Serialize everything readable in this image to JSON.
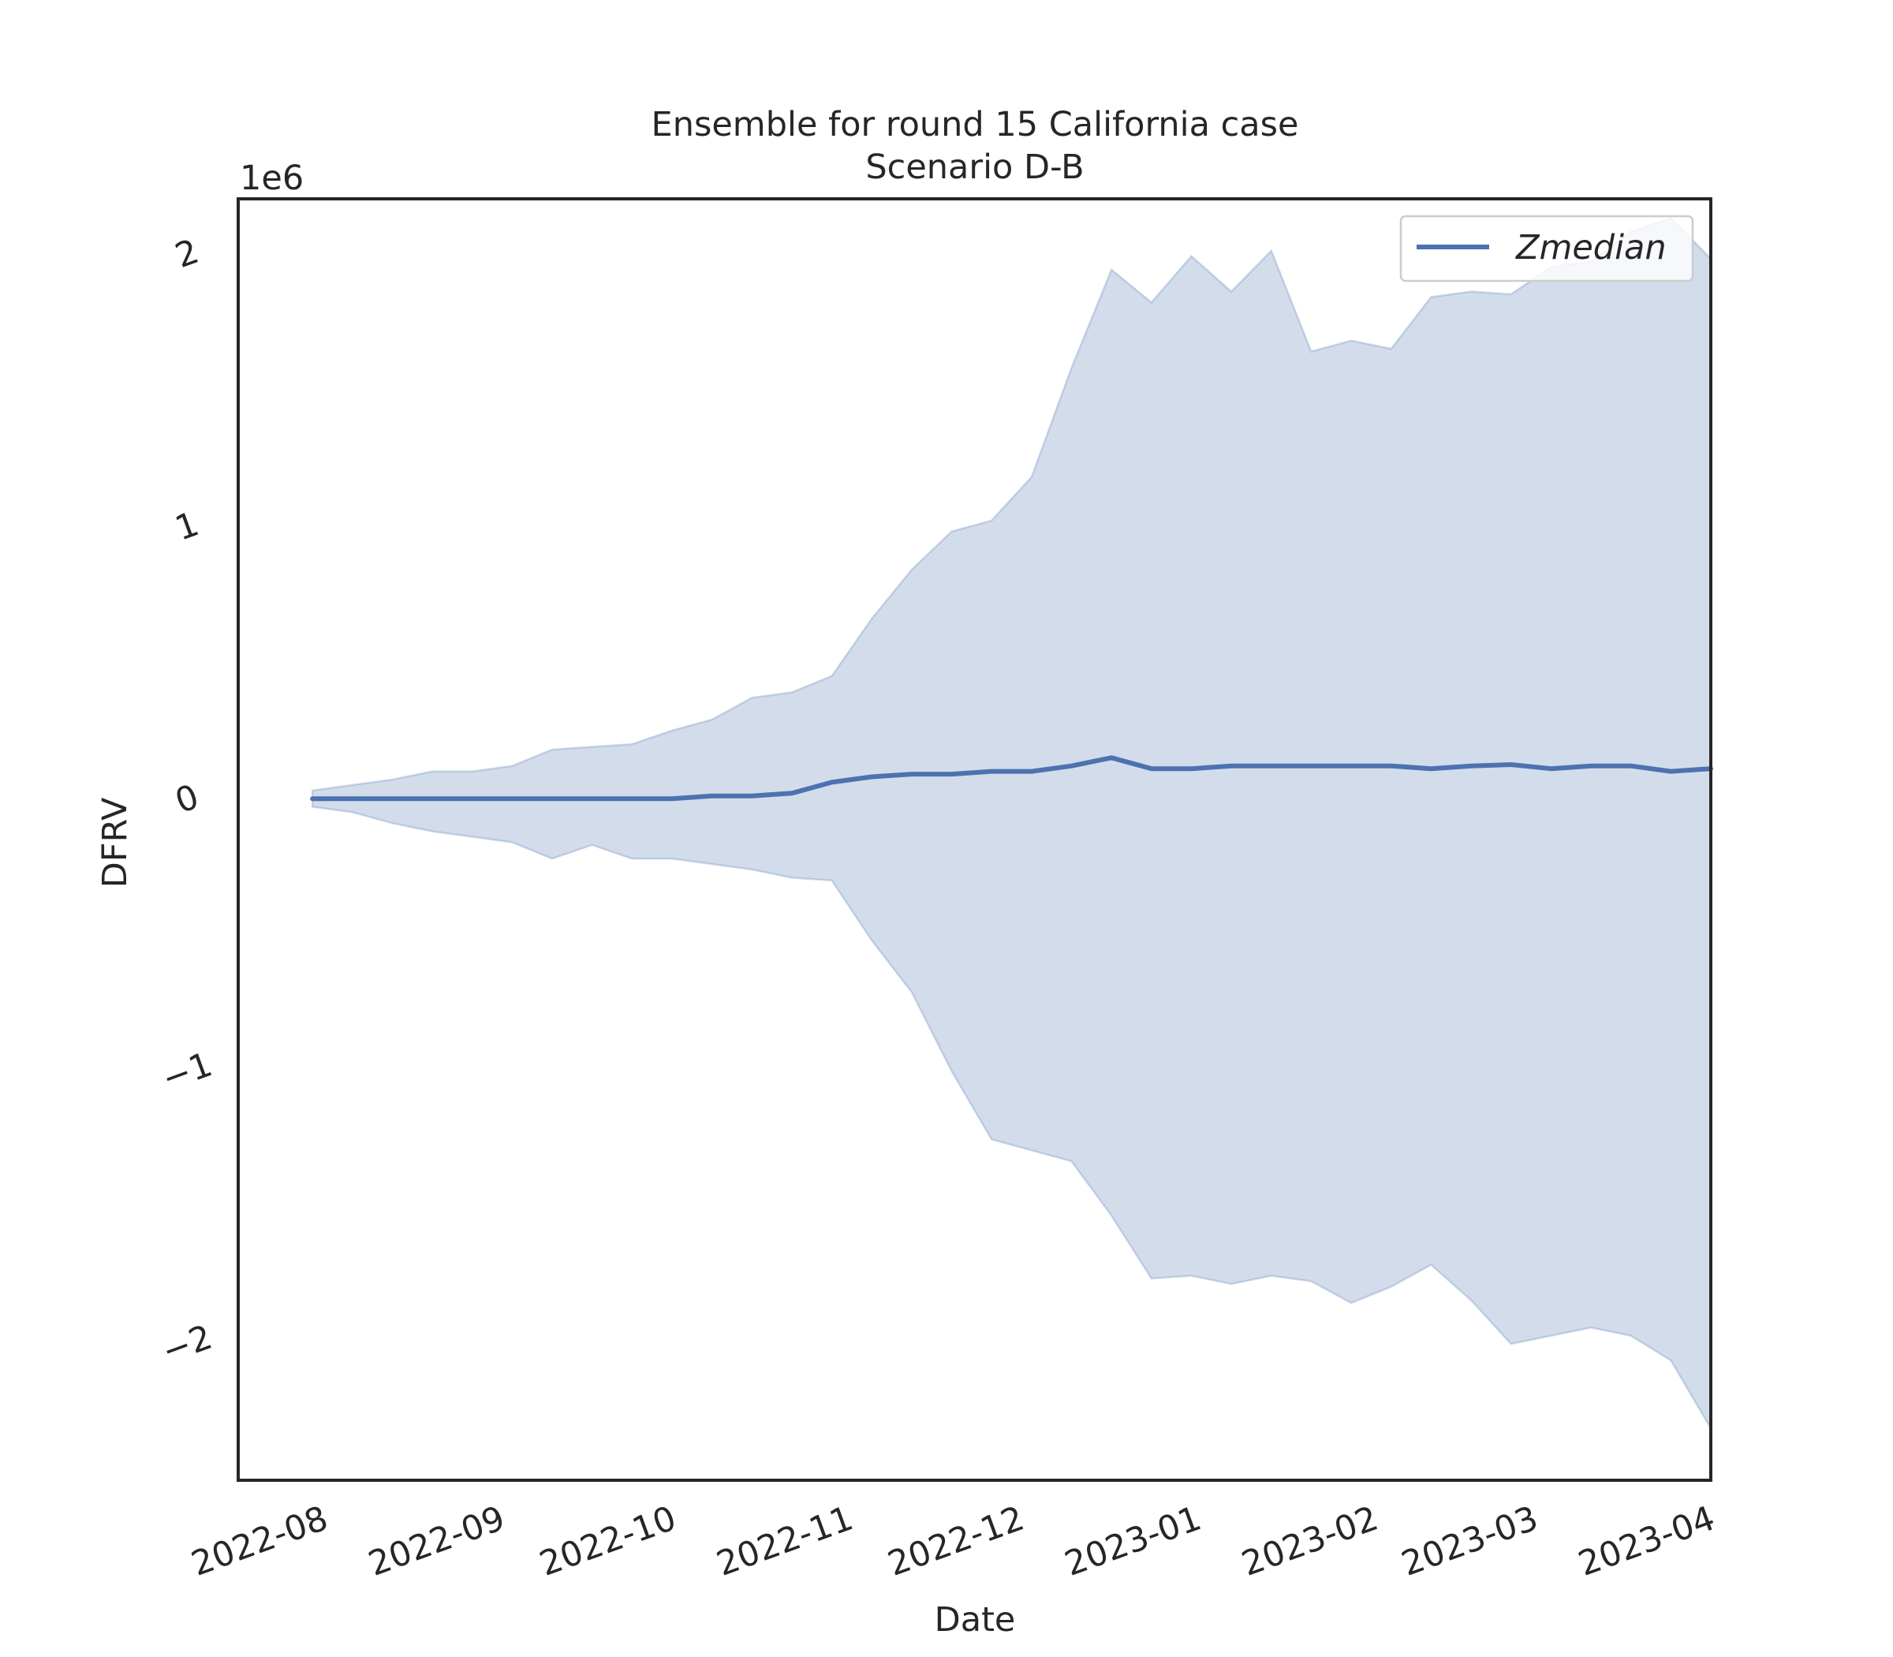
{
  "chart_data": {
    "type": "line",
    "title": "Ensemble for round 15 California case",
    "subtitle": "Scenario D-B",
    "xlabel": "Date",
    "ylabel": "DFRV",
    "y_offset_text": "1e6",
    "y_scale": 1000000,
    "ylim": [
      -2500000,
      2200000
    ],
    "xlim": [
      "2022-07-17",
      "2023-04-01"
    ],
    "x_ticks": [
      "2022-08-01",
      "2022-09-01",
      "2022-10-01",
      "2022-11-01",
      "2022-12-01",
      "2023-01-01",
      "2023-02-01",
      "2023-03-01",
      "2023-04-01"
    ],
    "x_tick_labels": [
      "2022-08",
      "2022-09",
      "2022-10",
      "2022-11",
      "2022-12",
      "2023-01",
      "2023-02",
      "2023-03",
      "2023-04"
    ],
    "y_ticks": [
      -2000000,
      -1000000,
      0,
      1000000,
      2000000
    ],
    "y_tick_labels": [
      "−2",
      "−1",
      "0",
      "1",
      "2"
    ],
    "grid": false,
    "legend_position": "top-right",
    "colors": {
      "line": "#4c72b0",
      "band": "#4c72b0",
      "axes": "#262626"
    },
    "x": [
      "2022-07-30",
      "2022-08-06",
      "2022-08-13",
      "2022-08-20",
      "2022-08-27",
      "2022-09-03",
      "2022-09-10",
      "2022-09-17",
      "2022-09-24",
      "2022-10-01",
      "2022-10-08",
      "2022-10-15",
      "2022-10-22",
      "2022-10-29",
      "2022-11-05",
      "2022-11-12",
      "2022-11-19",
      "2022-11-26",
      "2022-12-03",
      "2022-12-10",
      "2022-12-17",
      "2022-12-24",
      "2022-12-31",
      "2023-01-07",
      "2023-01-14",
      "2023-01-21",
      "2023-01-28",
      "2023-02-04",
      "2023-02-11",
      "2023-02-18",
      "2023-02-25",
      "2023-03-04",
      "2023-03-11",
      "2023-03-18",
      "2023-03-25",
      "2023-04-01"
    ],
    "series": [
      {
        "name": "Zmedian",
        "values": [
          0,
          0,
          0,
          0,
          0,
          0,
          0,
          0,
          0,
          0,
          10000,
          10000,
          20000,
          60000,
          80000,
          90000,
          90000,
          100000,
          100000,
          120000,
          150000,
          110000,
          110000,
          120000,
          120000,
          120000,
          120000,
          120000,
          110000,
          120000,
          125000,
          110000,
          120000,
          120000,
          100000,
          110000
        ]
      }
    ],
    "band": {
      "upper": [
        30000,
        50000,
        70000,
        100000,
        100000,
        120000,
        180000,
        190000,
        200000,
        250000,
        290000,
        370000,
        390000,
        450000,
        660000,
        840000,
        980000,
        1020000,
        1180000,
        1580000,
        1940000,
        1820000,
        1990000,
        1860000,
        2010000,
        1640000,
        1680000,
        1650000,
        1840000,
        1860000,
        1850000,
        1950000,
        1970000,
        2080000,
        2130000,
        1980000
      ],
      "lower": [
        -30000,
        -50000,
        -90000,
        -120000,
        -140000,
        -160000,
        -220000,
        -170000,
        -220000,
        -220000,
        -240000,
        -260000,
        -290000,
        -300000,
        -520000,
        -710000,
        -1000000,
        -1250000,
        -1290000,
        -1330000,
        -1530000,
        -1760000,
        -1750000,
        -1780000,
        -1750000,
        -1770000,
        -1850000,
        -1790000,
        -1710000,
        -1840000,
        -2000000,
        -1970000,
        -1940000,
        -1970000,
        -2060000,
        -2310000
      ]
    }
  }
}
